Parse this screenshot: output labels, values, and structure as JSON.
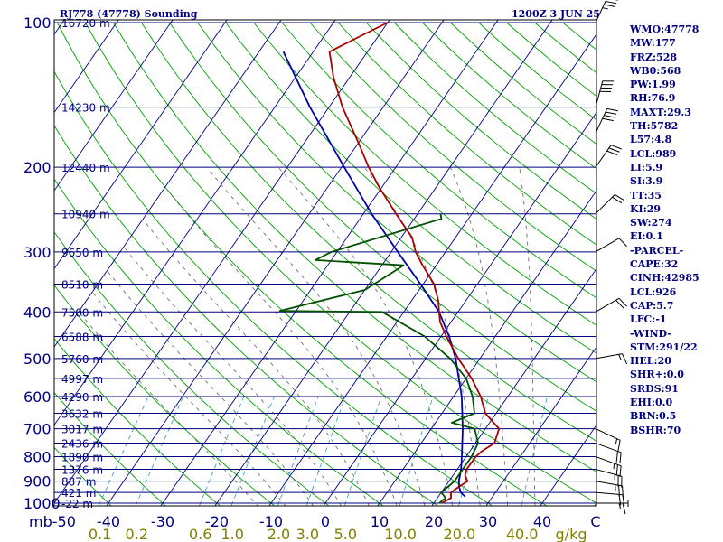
{
  "header": {
    "title_left": "RJ778 (47778) Sounding",
    "title_right": "1200Z  3 JUN 25"
  },
  "indices": [
    "WMO:47778",
    "MW:177",
    "FRZ:528",
    "WB0:568",
    "PW:1.99",
    "RH:76.9",
    "MAXT:29.3",
    "TH:5782",
    "L57:4.8",
    "LCL:989",
    "LI:5.9",
    "SI:3.9",
    "TT:35",
    "KI:29",
    "SW:274",
    "EI:0.1",
    "-PARCEL-",
    "CAPE:32",
    "CINH:42985",
    "LCL:926",
    "CAP:5.7",
    "LFC:-1",
    "-WIND-",
    "STM:291/22",
    "HEL:20",
    "SHR+:0.0",
    "SRDS:91",
    "EHI:0.0",
    "BRN:0.5",
    "BSHR:70"
  ],
  "chart_data": {
    "type": "skew-t log-p sounding",
    "pressure_axis": {
      "unit": "mb",
      "scale": "log",
      "range": [
        1000,
        100
      ],
      "ticks": [
        100,
        200,
        300,
        400,
        500,
        600,
        700,
        800,
        900,
        1000
      ]
    },
    "temperature_axis": {
      "unit": "C",
      "range": [
        -50,
        50
      ],
      "ticks": [
        -50,
        -40,
        -30,
        -20,
        -10,
        0,
        10,
        20,
        30,
        40
      ],
      "tick_labels": [
        "mb-50",
        "-40",
        "-30",
        "-20",
        "-10",
        "0",
        "10",
        "20",
        "30",
        "40",
        "C"
      ]
    },
    "mixing_ratio_axis": {
      "unit": "g/kg",
      "ticks": [
        0.1,
        0.2,
        0.6,
        1.0,
        2.0,
        3.0,
        5.0,
        10.0,
        20.0,
        40.0
      ],
      "tick_labels": [
        "0.1",
        "0.2",
        "0.6",
        "1.0",
        "2.0",
        "3.0",
        "5.0",
        "10.0",
        "20.0",
        "40.0",
        "g/kg"
      ]
    },
    "height_labels": [
      {
        "p": 100,
        "label": "16720 m"
      },
      {
        "p": 150,
        "label": "14230 m"
      },
      {
        "p": 200,
        "label": "12440 m"
      },
      {
        "p": 250,
        "label": "10940 m"
      },
      {
        "p": 300,
        "label": "9650 m"
      },
      {
        "p": 350,
        "label": "8510 m"
      },
      {
        "p": 400,
        "label": "7500 m"
      },
      {
        "p": 450,
        "label": "6588 m"
      },
      {
        "p": 500,
        "label": "5760 m"
      },
      {
        "p": 550,
        "label": "4997 m"
      },
      {
        "p": 600,
        "label": "4290 m"
      },
      {
        "p": 650,
        "label": "3632 m"
      },
      {
        "p": 700,
        "label": "3017 m"
      },
      {
        "p": 750,
        "label": "2436 m"
      },
      {
        "p": 800,
        "label": "1890 m"
      },
      {
        "p": 850,
        "label": "1376 m"
      },
      {
        "p": 900,
        "label": "887 m"
      },
      {
        "p": 950,
        "label": "421 m"
      },
      {
        "p": 1000,
        "label": "-22 m"
      }
    ],
    "temperature": [
      [
        1000,
        21.5
      ],
      [
        975,
        22.5
      ],
      [
        950,
        21.8
      ],
      [
        925,
        22.5
      ],
      [
        900,
        23.4
      ],
      [
        875,
        22.2
      ],
      [
        850,
        21.7
      ],
      [
        800,
        21.8
      ],
      [
        780,
        22.2
      ],
      [
        750,
        23.5
      ],
      [
        700,
        22.5
      ],
      [
        650,
        18.0
      ],
      [
        600,
        15.0
      ],
      [
        550,
        11.0
      ],
      [
        500,
        6.0
      ],
      [
        450,
        1.0
      ],
      [
        420,
        -2.0
      ],
      [
        400,
        -3.5
      ],
      [
        380,
        -5.0
      ],
      [
        350,
        -8.0
      ],
      [
        320,
        -12.5
      ],
      [
        300,
        -15.5
      ],
      [
        280,
        -18.0
      ],
      [
        250,
        -24.0
      ],
      [
        220,
        -30.5
      ],
      [
        200,
        -35.0
      ],
      [
        180,
        -39.5
      ],
      [
        150,
        -47.5
      ],
      [
        130,
        -53.0
      ],
      [
        115,
        -57.0
      ],
      [
        106,
        -53.0
      ],
      [
        100,
        -50.0
      ]
    ],
    "dewpoint": [
      [
        1000,
        21.0
      ],
      [
        975,
        21.5
      ],
      [
        950,
        20.0
      ],
      [
        925,
        20.5
      ],
      [
        900,
        21.0
      ],
      [
        850,
        21.0
      ],
      [
        800,
        21.0
      ],
      [
        750,
        20.5
      ],
      [
        700,
        18.0
      ],
      [
        680,
        13.0
      ],
      [
        650,
        16.0
      ],
      [
        600,
        13.5
      ],
      [
        550,
        10.0
      ],
      [
        500,
        4.5
      ],
      [
        450,
        -3.0
      ],
      [
        400,
        -14.0
      ],
      [
        398,
        -33.0
      ],
      [
        360,
        -20.0
      ],
      [
        320,
        -16.0
      ],
      [
        312,
        -33.0
      ],
      [
        300,
        -31.0
      ],
      [
        256,
        -15.0
      ],
      [
        250,
        -15.8
      ]
    ],
    "parcel": [
      [
        970,
        25.0
      ],
      [
        950,
        23.6
      ],
      [
        925,
        22.6
      ],
      [
        900,
        21.8
      ],
      [
        850,
        20.7
      ],
      [
        800,
        19.2
      ],
      [
        700,
        15.8
      ],
      [
        600,
        11.5
      ],
      [
        500,
        5.5
      ],
      [
        450,
        1.5
      ],
      [
        400,
        -3.5
      ],
      [
        350,
        -10.5
      ],
      [
        300,
        -18.8
      ],
      [
        250,
        -28.5
      ],
      [
        200,
        -39.5
      ],
      [
        150,
        -53.5
      ],
      [
        115,
        -65.5
      ]
    ],
    "winds": [
      {
        "p": 1000,
        "dir": 90,
        "kt": 15
      },
      {
        "p": 950,
        "dir": 95,
        "kt": 20
      },
      {
        "p": 900,
        "dir": 100,
        "kt": 25
      },
      {
        "p": 850,
        "dir": 105,
        "kt": 25
      },
      {
        "p": 800,
        "dir": 110,
        "kt": 25
      },
      {
        "p": 750,
        "dir": 110,
        "kt": 20
      },
      {
        "p": 700,
        "dir": 115,
        "kt": 15
      },
      {
        "p": 500,
        "dir": 80,
        "kt": 15
      },
      {
        "p": 400,
        "dir": 60,
        "kt": 20
      },
      {
        "p": 300,
        "dir": 60,
        "kt": 10
      },
      {
        "p": 250,
        "dir": 45,
        "kt": 20
      },
      {
        "p": 200,
        "dir": 35,
        "kt": 30
      },
      {
        "p": 170,
        "dir": 25,
        "kt": 40
      },
      {
        "p": 150,
        "dir": 15,
        "kt": 40
      },
      {
        "p": 100,
        "dir": 25,
        "kt": 35
      }
    ],
    "colors": {
      "temperature": "#aa0000",
      "dewpoint": "#005000",
      "parcel": "#0000aa",
      "isobar": "#000080",
      "isotherm": "#000080",
      "dry_adiabat": "#00a000",
      "moist_adiabat": "#707070",
      "mixing_ratio": "#40a0c0",
      "axis_label": "#000080",
      "mixing_label": "#808000"
    }
  }
}
